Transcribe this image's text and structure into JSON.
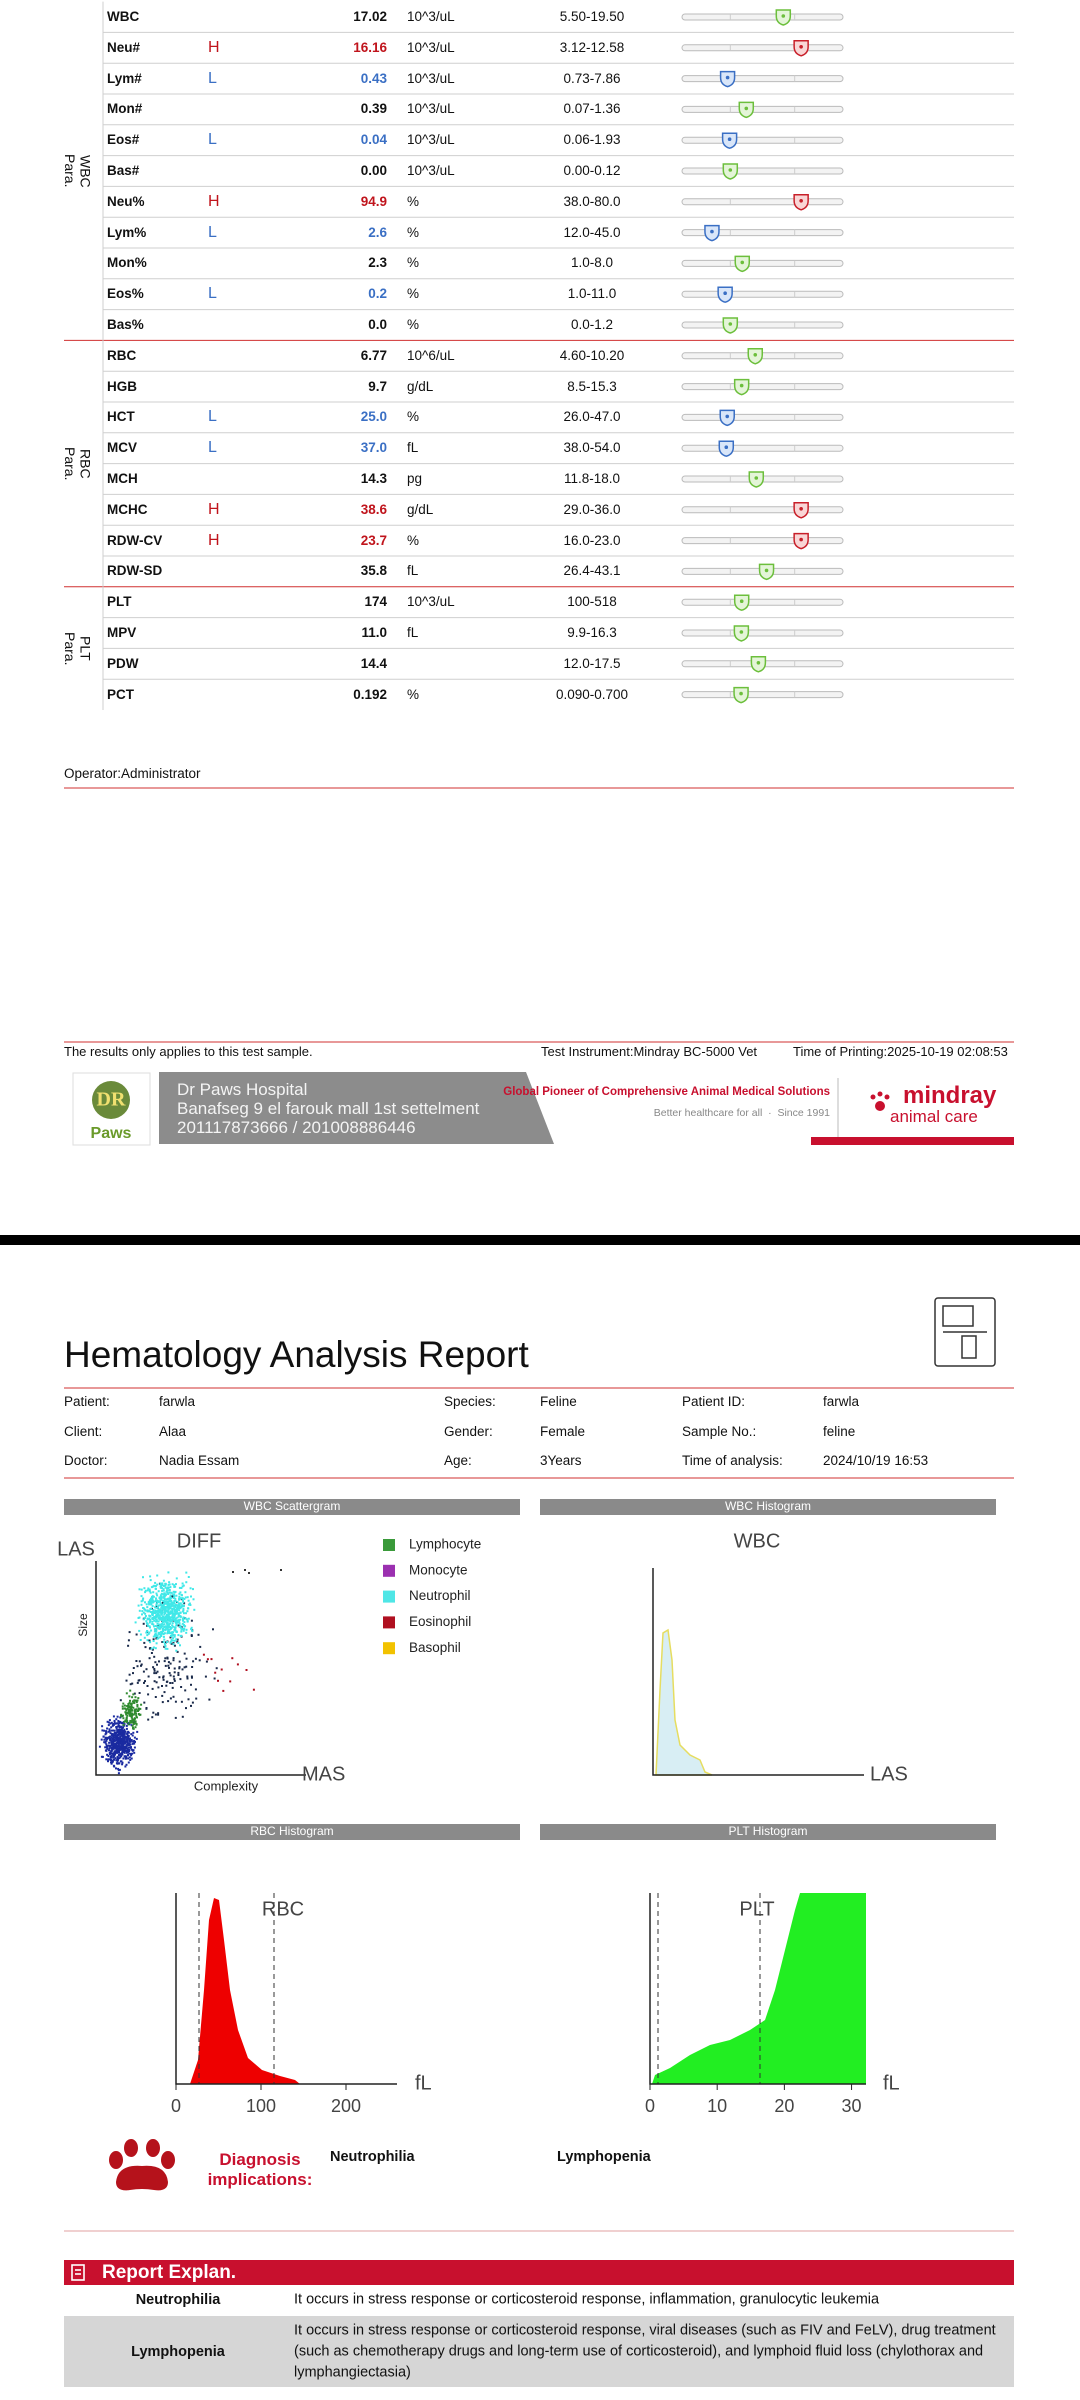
{
  "results": {
    "groups": [
      {
        "label": "WBC Para.",
        "rows": [
          {
            "name": "WBC",
            "value": "17.02",
            "unit": "10^3/uL",
            "range": "5.50-19.50"
          },
          {
            "name": "Neu#",
            "flag": "H",
            "value": "16.16",
            "unit": "10^3/uL",
            "range": "3.12-12.58"
          },
          {
            "name": "Lym#",
            "flag": "L",
            "value": "0.43",
            "unit": "10^3/uL",
            "range": "0.73-7.86"
          },
          {
            "name": "Mon#",
            "value": "0.39",
            "unit": "10^3/uL",
            "range": "0.07-1.36"
          },
          {
            "name": "Eos#",
            "flag": "L",
            "value": "0.04",
            "unit": "10^3/uL",
            "range": "0.06-1.93"
          },
          {
            "name": "Bas#",
            "value": "0.00",
            "unit": "10^3/uL",
            "range": "0.00-0.12"
          },
          {
            "name": "Neu%",
            "flag": "H",
            "value": "94.9",
            "unit": "%",
            "range": "38.0-80.0"
          },
          {
            "name": "Lym%",
            "flag": "L",
            "value": "2.6",
            "unit": "%",
            "range": "12.0-45.0"
          },
          {
            "name": "Mon%",
            "value": "2.3",
            "unit": "%",
            "range": "1.0-8.0"
          },
          {
            "name": "Eos%",
            "flag": "L",
            "value": "0.2",
            "unit": "%",
            "range": "1.0-11.0"
          },
          {
            "name": "Bas%",
            "value": "0.0",
            "unit": "%",
            "range": "0.0-1.2"
          }
        ]
      },
      {
        "label": "RBC Para.",
        "rows": [
          {
            "name": "RBC",
            "value": "6.77",
            "unit": "10^6/uL",
            "range": "4.60-10.20"
          },
          {
            "name": "HGB",
            "value": "9.7",
            "unit": "g/dL",
            "range": "8.5-15.3"
          },
          {
            "name": "HCT",
            "flag": "L",
            "value": "25.0",
            "unit": "%",
            "range": "26.0-47.0"
          },
          {
            "name": "MCV",
            "flag": "L",
            "value": "37.0",
            "unit": "fL",
            "range": "38.0-54.0"
          },
          {
            "name": "MCH",
            "value": "14.3",
            "unit": "pg",
            "range": "11.8-18.0"
          },
          {
            "name": "MCHC",
            "flag": "H",
            "value": "38.6",
            "unit": "g/dL",
            "range": "29.0-36.0"
          },
          {
            "name": "RDW-CV",
            "flag": "H",
            "value": "23.7",
            "unit": "%",
            "range": "16.0-23.0"
          },
          {
            "name": "RDW-SD",
            "value": "35.8",
            "unit": "fL",
            "range": "26.4-43.1"
          }
        ]
      },
      {
        "label": "PLT Para.",
        "rows": [
          {
            "name": "PLT",
            "value": "174",
            "unit": "10^3/uL",
            "range": "100-518"
          },
          {
            "name": "MPV",
            "value": "11.0",
            "unit": "fL",
            "range": "9.9-16.3"
          },
          {
            "name": "PDW",
            "value": "14.4",
            "range": "12.0-17.5"
          },
          {
            "name": "PCT",
            "value": "0.192",
            "unit": "%",
            "range": "0.090-0.700"
          }
        ]
      }
    ]
  },
  "operator": "Operator:Administrator",
  "footer": {
    "note": "The results only applies to this test sample.",
    "instrument": "Test Instrument:Mindray BC-5000 Vet",
    "printed": "Time of Printing:2025-10-19 02:08:53"
  },
  "banner": {
    "logo_mark": "DR",
    "logo_text": "Paws",
    "hospital": "Dr Paws Hospital",
    "address": "Banafseg 9 el farouk mall 1st settelment",
    "phones": "201117873666 / 201008886446",
    "slogan": "Global Pioneer of Comprehensive Animal Medical Solutions",
    "tagline": "Better healthcare for all  ·  Since 1991",
    "brand": "mindray",
    "brand_sub": "animal care"
  },
  "report": {
    "title": "Hematology Analysis Report",
    "info": [
      [
        {
          "label": "Patient:",
          "value": "farwla"
        },
        {
          "label": "Species:",
          "value": "Feline"
        },
        {
          "label": "Patient ID:",
          "value": "farwla"
        }
      ],
      [
        {
          "label": "Client:",
          "value": "Alaa"
        },
        {
          "label": "Gender:",
          "value": "Female"
        },
        {
          "label": "Sample No.:",
          "value": "feline"
        }
      ],
      [
        {
          "label": "Doctor:",
          "value": "Nadia Essam"
        },
        {
          "label": "Age:",
          "value": "3Years"
        },
        {
          "label": "Time of analysis:",
          "value": "2024/10/19 16:53"
        }
      ]
    ]
  },
  "scattergram": {
    "header": "WBC Scattergram",
    "title": "DIFF",
    "y_label": "LAS",
    "x_label": "MAS",
    "y_axis": "Size",
    "x_axis": "Complexity",
    "legend": [
      {
        "name": "Lymphocyte",
        "color": "#3a9a3a"
      },
      {
        "name": "Monocyte",
        "color": "#9b30b0"
      },
      {
        "name": "Neutrophil",
        "color": "#4fe6e6"
      },
      {
        "name": "Eosinophil",
        "color": "#b01020"
      },
      {
        "name": "Basophil",
        "color": "#f2c200"
      }
    ]
  },
  "wbc_histogram": {
    "header": "WBC Histogram",
    "title": "WBC",
    "x_label": "LAS"
  },
  "rbc_histogram": {
    "header": "RBC Histogram",
    "title": "RBC",
    "unit": "fL",
    "xlim": [
      0,
      260
    ],
    "xticks": [
      0,
      100,
      200
    ]
  },
  "plt_histogram": {
    "header": "PLT Histogram",
    "title": "PLT",
    "unit": "fL",
    "xlim": [
      0,
      32
    ],
    "xticks": [
      0,
      10,
      20,
      30
    ]
  },
  "diagnosis": {
    "label": "Diagnosis implications:",
    "items": [
      "Neutrophilia",
      "Lymphopenia"
    ]
  },
  "explanation": {
    "title": "Report Explan.",
    "rows": [
      {
        "term": "Neutrophilia",
        "text": "It occurs in stress response or corticosteroid response, inflammation, granulocytic leukemia"
      },
      {
        "term": "Lymphopenia",
        "text": "It occurs in stress response or corticosteroid response, viral diseases (such as FIV and FeLV), drug treatment (such as chemotherapy drugs and long-term use of corticosteroid), and lymphoid fluid loss (chylothorax and lymphangiectasia)"
      }
    ]
  }
}
